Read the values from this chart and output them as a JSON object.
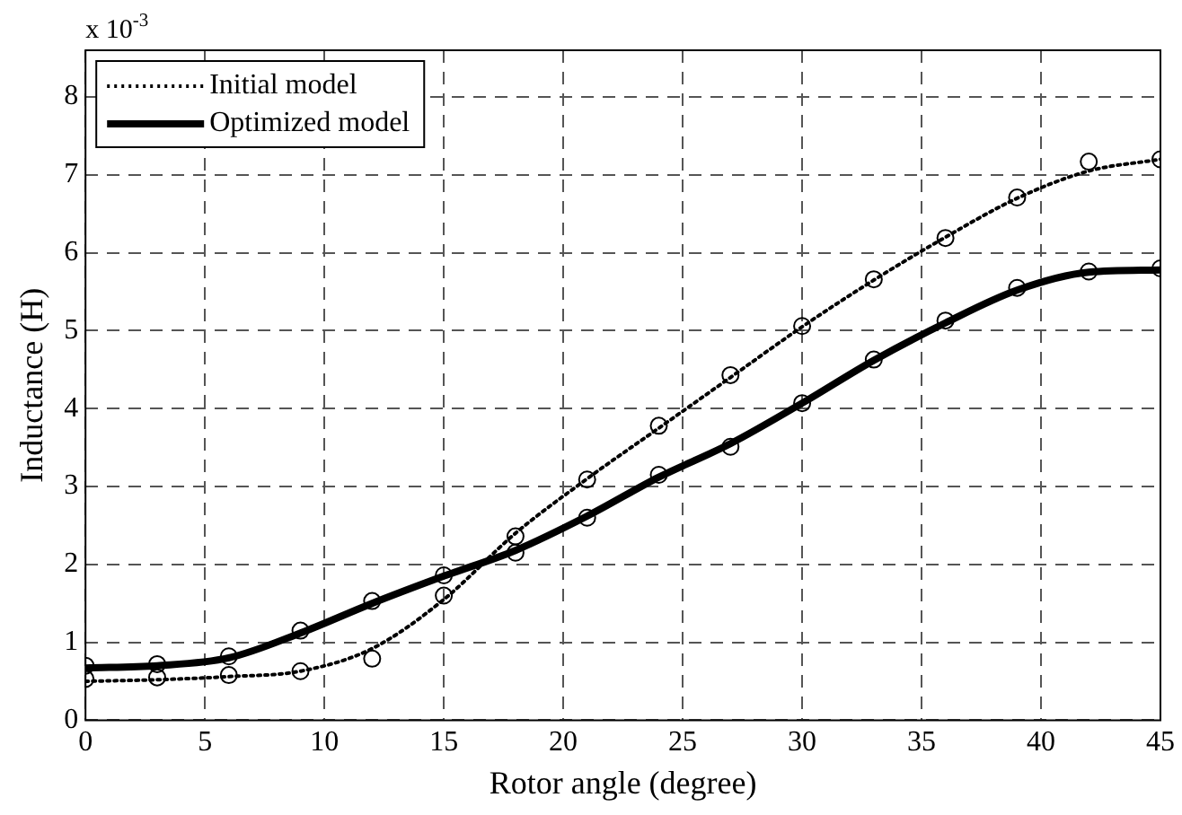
{
  "chart_data": {
    "type": "line",
    "xlabel": "Rotor angle (degree)",
    "ylabel": "Inductance (H)",
    "annotations": [
      "x 10$^{-3}$"
    ],
    "x": [
      0,
      3,
      6,
      9,
      12,
      15,
      18,
      21,
      24,
      27,
      30,
      33,
      36,
      39,
      42,
      45
    ],
    "xlim": [
      0,
      45
    ],
    "xticks": [
      0,
      5,
      10,
      15,
      20,
      25,
      30,
      35,
      40,
      45
    ],
    "ylim": [
      0,
      8.6
    ],
    "yticks": [
      0,
      1,
      2,
      3,
      4,
      5,
      6,
      7,
      8
    ],
    "grid": true,
    "legend": "top left",
    "series": [
      {
        "name": "Initial model",
        "color": "#000000",
        "line_style": "dotted",
        "marker": "none",
        "values": [
          0.5,
          0.52,
          0.56,
          0.63,
          0.92,
          1.55,
          2.4,
          3.1,
          3.75,
          4.4,
          5.05,
          5.65,
          6.2,
          6.7,
          7.05,
          7.2
        ]
      },
      {
        "name": "Optimized model",
        "color": "#000000",
        "line_style": "solid",
        "marker": "none",
        "values": [
          0.67,
          0.7,
          0.8,
          1.12,
          1.5,
          1.85,
          2.18,
          2.62,
          3.12,
          3.55,
          4.07,
          4.62,
          5.1,
          5.52,
          5.75,
          5.78
        ]
      },
      {
        "type": "scatter",
        "color": "#000000",
        "marker": "circle",
        "values": [
          0.53,
          0.55,
          0.58,
          0.63,
          0.79,
          1.6,
          2.36,
          3.09,
          3.78,
          4.43,
          5.06,
          5.66,
          6.19,
          6.71,
          7.17,
          7.2
        ]
      },
      {
        "type": "scatter",
        "color": "#000000",
        "marker": "circle",
        "values": [
          0.7,
          0.72,
          0.82,
          1.15,
          1.53,
          1.86,
          2.15,
          2.6,
          3.15,
          3.51,
          4.07,
          4.63,
          5.13,
          5.55,
          5.76,
          5.8
        ]
      }
    ]
  }
}
